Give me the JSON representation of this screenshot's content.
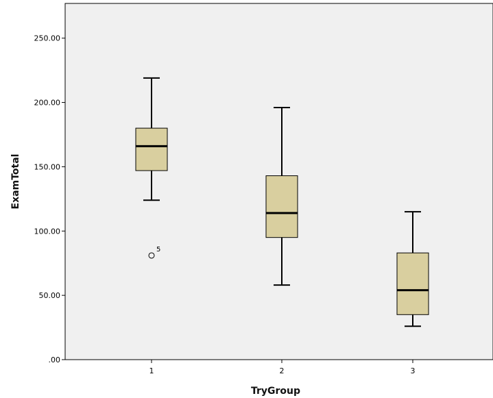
{
  "chart_data": {
    "type": "box",
    "xlabel": "TryGroup",
    "ylabel": "ExamTotal",
    "ylim": [
      0,
      277
    ],
    "yticks": [
      {
        "value": 0,
        "label": ".00"
      },
      {
        "value": 50,
        "label": "50.00"
      },
      {
        "value": 100,
        "label": "100.00"
      },
      {
        "value": 150,
        "label": "150.00"
      },
      {
        "value": 200,
        "label": "200.00"
      },
      {
        "value": 250,
        "label": "250.00"
      }
    ],
    "categories": [
      "1",
      "2",
      "3"
    ],
    "boxes": [
      {
        "category": "1",
        "whisker_low": 124,
        "q1": 147,
        "median": 166,
        "q3": 180,
        "whisker_high": 219
      },
      {
        "category": "2",
        "whisker_low": 58,
        "q1": 95,
        "median": 114,
        "q3": 143,
        "whisker_high": 196
      },
      {
        "category": "3",
        "whisker_low": 26,
        "q1": 35,
        "median": 54,
        "q3": 83,
        "whisker_high": 115
      }
    ],
    "outliers": [
      {
        "category": "1",
        "value": 81,
        "label": "5"
      }
    ],
    "colors": {
      "plot_background": "#f0f0f0",
      "box_fill": "#d9cf9f",
      "stroke": "#000000"
    }
  }
}
